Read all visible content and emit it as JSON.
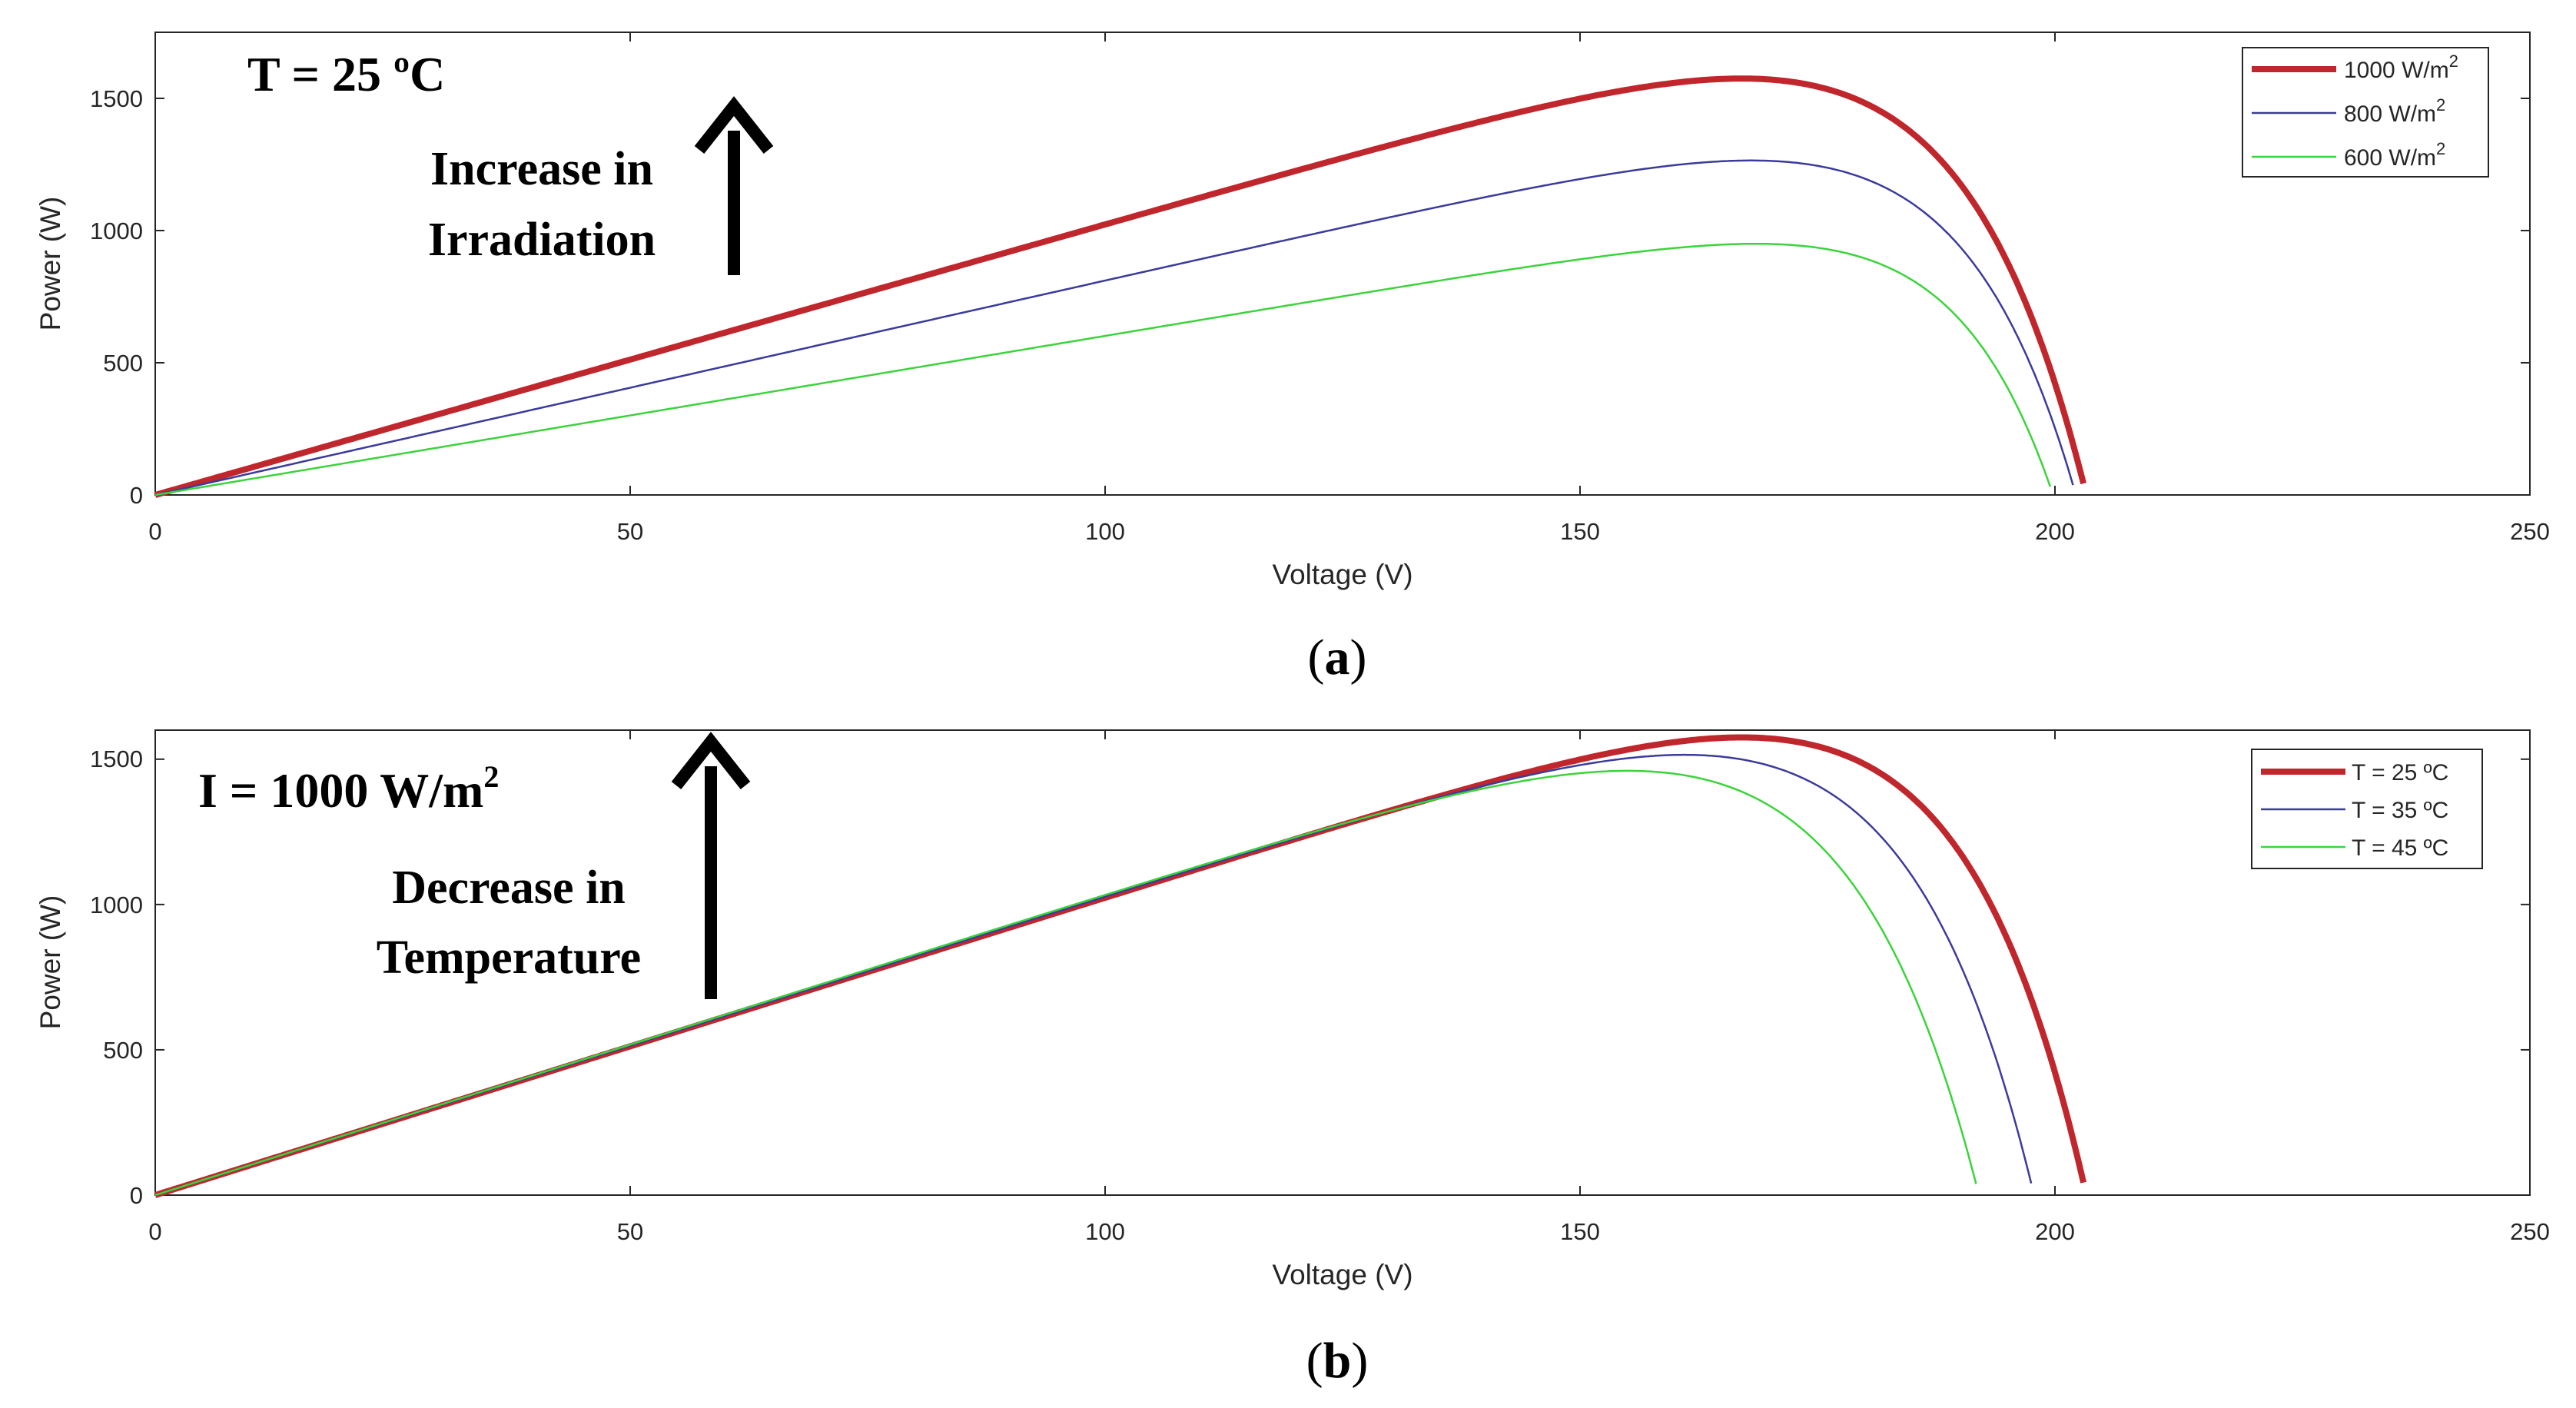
{
  "chart_data": [
    {
      "type": "line",
      "caption_open": "(",
      "caption_letter": "a",
      "caption_close": ")",
      "xlabel": "Voltage (V)",
      "ylabel": "Power (W)",
      "xlim": [
        0,
        250
      ],
      "ylim": [
        0,
        1750
      ],
      "xticks": [
        0,
        50,
        100,
        150,
        200,
        250
      ],
      "yticks": [
        0,
        500,
        1000,
        1500
      ],
      "condition_text": "T = 25 ºC",
      "arrow_text": [
        "Increase in",
        "Irradiation"
      ],
      "legend": [
        {
          "base": "1000 W/m",
          "sup": "2"
        },
        {
          "base": "800 W/m",
          "sup": "2"
        },
        {
          "base": "600 W/m",
          "sup": "2"
        }
      ],
      "series": [
        {
          "name": "1000 W/m2",
          "color": "#c0272d",
          "voc": 203.3,
          "pmax": 1575,
          "vmp": 167,
          "order": 1
        },
        {
          "name": "800 W/m2",
          "color": "#3b3b9c",
          "voc": 202.2,
          "pmax": 1265,
          "vmp": 168,
          "order": 2
        },
        {
          "name": "600 W/m2",
          "color": "#3ad43a",
          "voc": 199.8,
          "pmax": 950,
          "vmp": 168.5,
          "order": 3
        }
      ]
    },
    {
      "type": "line",
      "caption_open": "(",
      "caption_letter": "b",
      "caption_close": ")",
      "xlabel": "Voltage (V)",
      "ylabel": "Power (W)",
      "xlim": [
        0,
        250
      ],
      "ylim": [
        0,
        1600
      ],
      "xticks": [
        0,
        50,
        100,
        150,
        200,
        250
      ],
      "yticks": [
        0,
        500,
        1000,
        1500
      ],
      "condition_text": "I = 1000 W/m",
      "condition_sup": "2",
      "arrow_text": [
        "Decrease in",
        "Temperature"
      ],
      "legend": [
        {
          "base": "T = 25 ºC",
          "sup": ""
        },
        {
          "base": "T = 35 ºC",
          "sup": ""
        },
        {
          "base": "T = 45 ºC",
          "sup": ""
        }
      ],
      "series": [
        {
          "name": "T = 25 ºC",
          "color": "#c0272d",
          "voc": 203.3,
          "pmax": 1575,
          "vmp": 167,
          "order": 1
        },
        {
          "name": "T = 35 ºC",
          "color": "#3b3b9c",
          "voc": 197.8,
          "pmax": 1515,
          "vmp": 161,
          "order": 2
        },
        {
          "name": "T = 45 ºC",
          "color": "#3ad43a",
          "voc": 192.0,
          "pmax": 1460,
          "vmp": 155,
          "order": 3
        }
      ]
    }
  ]
}
